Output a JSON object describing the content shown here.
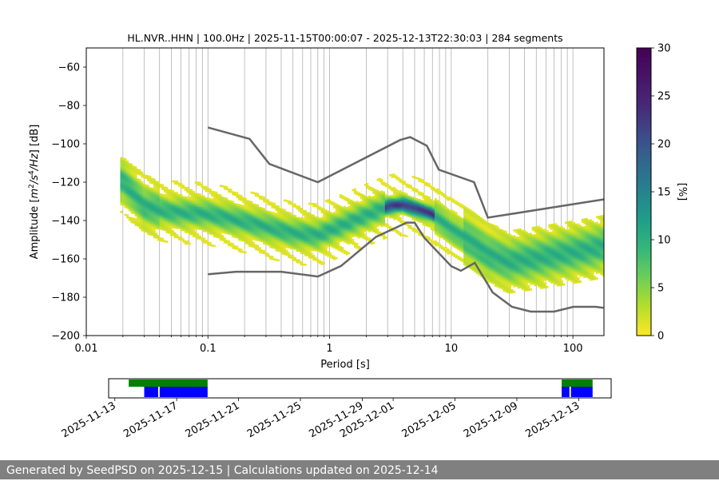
{
  "chart_data": [
    {
      "type": "heatmap",
      "title": "HL.NVR..HHN | 100.0Hz | 2025-11-15T00:00:07 - 2025-12-13T22:30:03 | 284 segments",
      "xlabel": "Period [s]",
      "ylabel": "Amplitude [m²/s⁴/Hz] [dB]",
      "ylabel_parts": {
        "prefix": "Amplitude [",
        "m": "m",
        "sup1": "2",
        "mid": "/s",
        "sup2": "4",
        "suffix": "/Hz] [dB]"
      },
      "x_scale": "log",
      "xlim": [
        0.01,
        180
      ],
      "ylim": [
        -200,
        -50
      ],
      "x_ticks": [
        0.01,
        0.1,
        1,
        10,
        100
      ],
      "x_tick_labels": [
        "0.01",
        "0.1",
        "1",
        "10",
        "100"
      ],
      "y_ticks": [
        -200,
        -180,
        -160,
        -140,
        -120,
        -100,
        -80,
        -60
      ],
      "y_tick_labels": [
        "−200",
        "−180",
        "−160",
        "−140",
        "−120",
        "−100",
        "−80",
        "−60"
      ],
      "grid": "vertical minor+major",
      "colormap": "viridis_r",
      "colorbar": {
        "label": "[%]",
        "range": [
          0,
          30
        ],
        "ticks": [
          0,
          5,
          10,
          15,
          20,
          25,
          30
        ]
      },
      "density_center": {
        "period": [
          0.02,
          0.03,
          0.05,
          0.1,
          0.2,
          0.5,
          0.8,
          1.5,
          3,
          4,
          5,
          7,
          10,
          15,
          20,
          30,
          50,
          100,
          180
        ],
        "amplitude": [
          -120,
          -133,
          -136,
          -137,
          -141,
          -147,
          -148,
          -141,
          -133,
          -132,
          -134,
          -137,
          -145,
          -152,
          -158,
          -162,
          -160,
          -157,
          -154
        ]
      },
      "noise_models": [
        {
          "name": "high",
          "period": [
            0.1,
            0.22,
            0.32,
            0.8,
            3.8,
            4.6,
            6.3,
            7.9,
            15.4,
            20,
            354.8
          ],
          "amplitude": [
            -91.5,
            -97.4,
            -110.5,
            -120,
            -98,
            -96.5,
            -101,
            -113.5,
            -120,
            -138.5,
            -126
          ]
        },
        {
          "name": "low",
          "period": [
            0.1,
            0.17,
            0.4,
            0.8,
            1.24,
            2.4,
            4.3,
            5,
            6,
            10,
            12,
            15.6,
            21.9,
            31.6,
            45,
            70,
            101,
            154,
            178
          ],
          "amplitude": [
            -168,
            -166.7,
            -166.7,
            -169.2,
            -163.7,
            -148.6,
            -141.1,
            -141.1,
            -149,
            -163.8,
            -166.2,
            -162.1,
            -177.5,
            -185,
            -187.5,
            -187.5,
            -185,
            -185,
            -185.5
          ]
        }
      ]
    },
    {
      "type": "bar",
      "x_tick_labels": [
        "2025-11-13",
        "2025-11-17",
        "2025-11-21",
        "2025-11-25",
        "2025-11-29",
        "2025-12-01",
        "2025-12-05",
        "2025-12-09",
        "2025-12-13"
      ],
      "x_ticks": [
        "2025-11-13",
        "2025-11-17",
        "2025-11-21",
        "2025-11-25",
        "2025-11-29",
        "2025-12-01",
        "2025-12-05",
        "2025-12-09",
        "2025-12-13"
      ],
      "xlim": [
        "2025-11-12.6",
        "2025-12-15.1"
      ],
      "series": [
        {
          "color": "#008000",
          "intervals": [
            [
              "2025-11-13.9",
              "2025-11-19.0"
            ],
            [
              "2025-12-11.9",
              "2025-12-13.9"
            ]
          ]
        },
        {
          "color": "#0000ff",
          "intervals": [
            [
              "2025-11-14.9",
              "2025-11-15.8"
            ],
            [
              "2025-11-15.9",
              "2025-11-19.0"
            ],
            [
              "2025-12-11.9",
              "2025-12-12.4"
            ],
            [
              "2025-12-12.5",
              "2025-12-13.9"
            ]
          ]
        }
      ]
    }
  ],
  "footer": {
    "text": "Generated by SeedPSD on 2025-12-15 | Calculations updated on 2025-12-14"
  },
  "colors": {
    "noise_model": "#666666",
    "footer_bg": "#808080",
    "grid": "#b0b0b0"
  }
}
